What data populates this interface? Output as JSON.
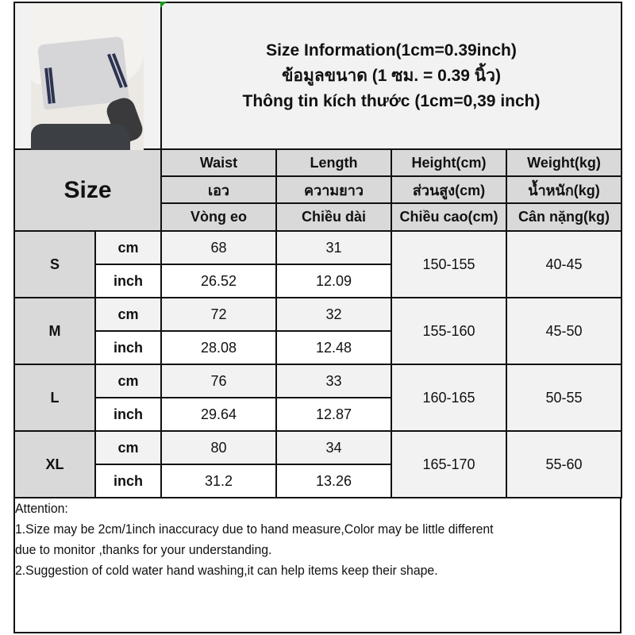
{
  "header": {
    "title_lines": [
      "Size Information(1cm=0.39inch)",
      "ข้อมูลขนาด (1 ซม. = 0.39 นิ้ว)",
      "Thông tin kích thước (1cm=0,39 inch)"
    ],
    "size_label": "Size"
  },
  "columns": [
    {
      "en": "Waist",
      "th": "เอว",
      "vi": "Vòng eo"
    },
    {
      "en": "Length",
      "th": "ความยาว",
      "vi": "Chiều dài"
    },
    {
      "en": "Height(cm)",
      "th": "ส่วนสูง(cm)",
      "vi": "Chiều cao(cm)"
    },
    {
      "en": "Weight(kg)",
      "th": "น้ำหนัก(kg)",
      "vi": "Cân nặng(kg)"
    }
  ],
  "units": {
    "cm": "cm",
    "inch": "inch"
  },
  "rows": [
    {
      "size": "S",
      "cm": [
        "68",
        "31"
      ],
      "inch": [
        "26.52",
        "12.09"
      ],
      "height": "150-155",
      "weight": "40-45"
    },
    {
      "size": "M",
      "cm": [
        "72",
        "32"
      ],
      "inch": [
        "28.08",
        "12.48"
      ],
      "height": "155-160",
      "weight": "45-50"
    },
    {
      "size": "L",
      "cm": [
        "76",
        "33"
      ],
      "inch": [
        "29.64",
        "12.87"
      ],
      "height": "160-165",
      "weight": "50-55"
    },
    {
      "size": "XL",
      "cm": [
        "80",
        "34"
      ],
      "inch": [
        "31.2",
        "13.26"
      ],
      "height": "165-170",
      "weight": "55-60"
    }
  ],
  "attention": {
    "heading": "Attention:",
    "lines": [
      "1.Size may be 2cm/1inch inaccuracy due to hand measure,Color may be little different",
      "due to monitor ,thanks for your understanding.",
      "2.Suggestion of cold water hand washing,it can help items keep their shape."
    ]
  },
  "colors": {
    "header_gray": "#d9d9d9",
    "light_gray": "#f2f2f2",
    "border": "#111111"
  }
}
